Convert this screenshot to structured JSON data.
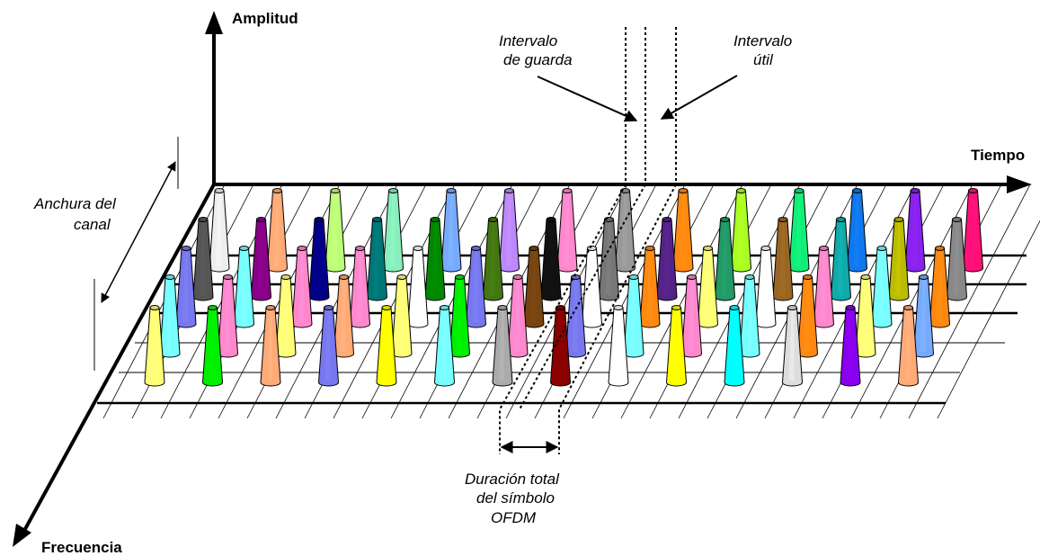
{
  "axes": {
    "amplitude_label": "Amplitud",
    "time_label": "Tiempo",
    "frequency_label": "Frecuencia"
  },
  "annotations": {
    "guard_interval": [
      "Intervalo",
      "de guarda"
    ],
    "useful_interval": [
      "Intervalo",
      "útil"
    ],
    "channel_width": [
      "Anchura del",
      "canal"
    ],
    "symbol_duration": [
      "Duración total",
      "del símbolo",
      "OFDM"
    ]
  },
  "rows": [
    [
      "#eeeeee",
      "#ffaa77",
      "#bbff77",
      "#88eebb",
      "#77aaff",
      "#bb88ff",
      "#ff88cc",
      "#999999",
      "#ff8811",
      "#aaff22",
      "#11ee77",
      "#1177ee",
      "#8822ee",
      "#ff1177"
    ],
    [
      "#555555",
      "#880088",
      "#000088",
      "#007777",
      "#008800",
      "#447711",
      "#111111",
      "#777777",
      "#552288",
      "#229966",
      "#996622",
      "#11aaaa",
      "#bbbb00",
      "#888888"
    ],
    [
      "#7777ee",
      "#77ffff",
      "#ff88cc",
      "#ff88cc",
      "#ffffff",
      "#7777ee",
      "#774411",
      "#ffffff",
      "#ff8811",
      "#ffff77",
      "#ffffff",
      "#ff88cc",
      "#77ffff",
      "#ff8811"
    ],
    [
      "#77ffff",
      "#ff88cc",
      "#ffff77",
      "#ffaa77",
      "#ffff77",
      "#00ee00",
      "#ff88cc",
      "#7777ee",
      "#77ffff",
      "#ff88cc",
      "#77ffff",
      "#ff8811",
      "#ffff77",
      "#77aaff"
    ],
    [
      "#ffff77",
      "#00ee00",
      "#ffaa77",
      "#7777ee",
      "#ffff00",
      "#77ffff",
      "#aaaaaa",
      "#880000",
      "#ffffff",
      "#ffff00",
      "#00ffff",
      "#dddddd",
      "#8800ee",
      "#ffaa77"
    ]
  ]
}
